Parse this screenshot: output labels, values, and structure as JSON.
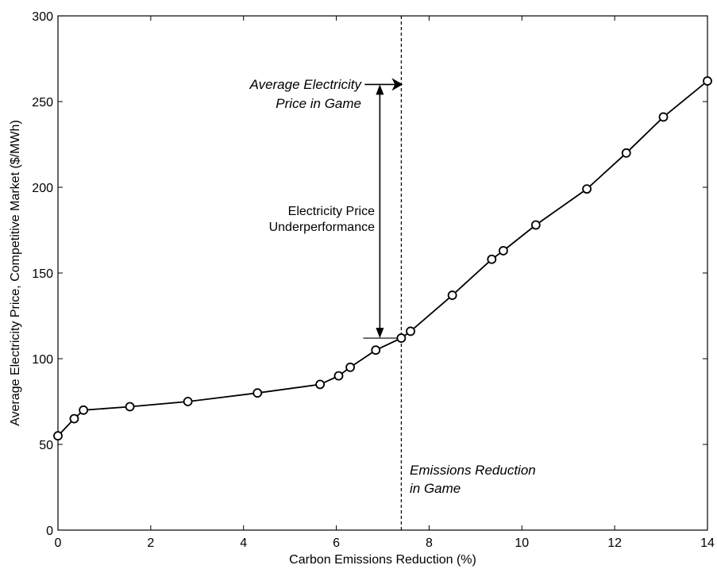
{
  "chart_data": {
    "type": "line",
    "title": "",
    "xlabel": "Carbon Emissions Reduction (%)",
    "ylabel": "Average Electricity Price, Competitive Market ($/MWh)",
    "xlim": [
      0,
      14
    ],
    "ylim": [
      0,
      300
    ],
    "xticks": [
      0,
      2,
      4,
      6,
      8,
      10,
      12,
      14
    ],
    "yticks": [
      0,
      50,
      100,
      150,
      200,
      250,
      300
    ],
    "grid": false,
    "legend": "none",
    "series": [
      {
        "marker": "circle",
        "color": "#000000",
        "x": [
          0.0,
          0.35,
          0.55,
          1.55,
          2.8,
          4.3,
          5.65,
          6.05,
          6.3,
          6.85,
          7.4,
          7.6,
          8.5,
          9.35,
          9.6,
          10.3,
          11.4,
          12.25,
          13.05,
          14.0
        ],
        "y": [
          55,
          65,
          70,
          72,
          75,
          80,
          85,
          90,
          95,
          105,
          112,
          116,
          137,
          158,
          163,
          178,
          199,
          220,
          241,
          262
        ]
      }
    ],
    "annotations": {
      "avg_price_game": {
        "line1": "Average Electricity",
        "line2": "Price in Game",
        "x": 7.4,
        "y_top": 260,
        "y_bottom": 112
      },
      "underperformance": {
        "line1": "Electricity Price",
        "line2": "Underperformance"
      },
      "emissions_game": {
        "line1": "Emissions Reduction",
        "line2": "in Game",
        "x": 7.4
      }
    }
  }
}
